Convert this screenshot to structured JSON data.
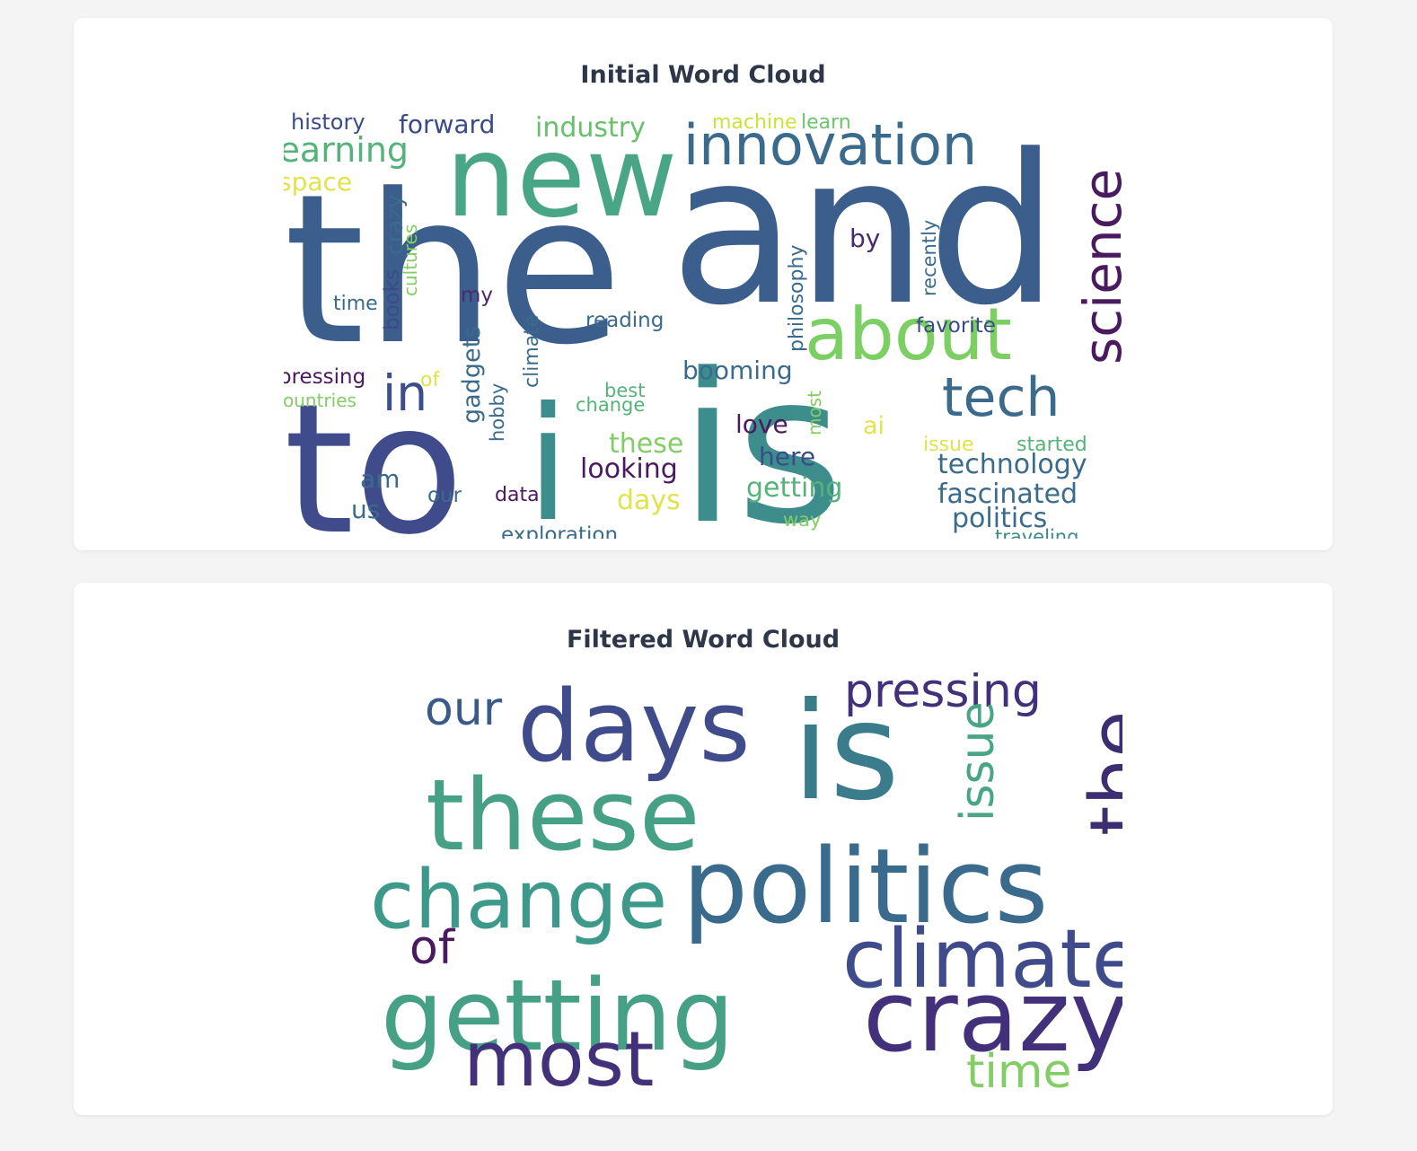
{
  "charts": {
    "initial": {
      "title": "Initial Word Cloud",
      "chart_data": {
        "type": "wordcloud",
        "words": [
          {
            "text": "the",
            "color": "#3b5e8c"
          },
          {
            "text": "and",
            "color": "#3b5e8c"
          },
          {
            "text": "new",
            "color": "#48a687"
          },
          {
            "text": "to",
            "color": "#3f4b8a"
          },
          {
            "text": "is",
            "color": "#3d8d8c"
          },
          {
            "text": "i",
            "color": "#3d8d8c"
          },
          {
            "text": "innovation",
            "color": "#3a6b8c"
          },
          {
            "text": "about",
            "color": "#7ccf62"
          },
          {
            "text": "science",
            "color": "#4a1a5e"
          },
          {
            "text": "tech",
            "color": "#3a6b8c"
          },
          {
            "text": "in",
            "color": "#3d4f8a"
          },
          {
            "text": "learning",
            "color": "#55b37a"
          },
          {
            "text": "forward",
            "color": "#3a4b8a"
          },
          {
            "text": "history",
            "color": "#3b4b8a"
          },
          {
            "text": "industry",
            "color": "#67c06a"
          },
          {
            "text": "machine",
            "color": "#cde23a"
          },
          {
            "text": "learn",
            "color": "#6dc46a"
          },
          {
            "text": "space",
            "color": "#e0e34a"
          },
          {
            "text": "books",
            "color": "#3a4b8a"
          },
          {
            "text": "crazy",
            "color": "#3a6b8c"
          },
          {
            "text": "cultures",
            "color": "#82cd64"
          },
          {
            "text": "time",
            "color": "#3a6b8c"
          },
          {
            "text": "my",
            "color": "#4a2a6e"
          },
          {
            "text": "gadgets",
            "color": "#3a6b8c"
          },
          {
            "text": "climate",
            "color": "#3a6b8c"
          },
          {
            "text": "reading",
            "color": "#3a6b8c"
          },
          {
            "text": "by",
            "color": "#4a2a6e"
          },
          {
            "text": "philosophy",
            "color": "#3a6b8c"
          },
          {
            "text": "recently",
            "color": "#3a6b8c"
          },
          {
            "text": "favorite",
            "color": "#3a4b8a"
          },
          {
            "text": "booming",
            "color": "#3a6b8c"
          },
          {
            "text": "pressing",
            "color": "#4a1a5e"
          },
          {
            "text": "of",
            "color": "#e0e34a"
          },
          {
            "text": "countries",
            "color": "#82cd64"
          },
          {
            "text": "best",
            "color": "#55b37a"
          },
          {
            "text": "change",
            "color": "#55b37a"
          },
          {
            "text": "hobby",
            "color": "#3a6b8c"
          },
          {
            "text": "love",
            "color": "#4a1a5e"
          },
          {
            "text": "most",
            "color": "#82cd64"
          },
          {
            "text": "ai",
            "color": "#e0e34a"
          },
          {
            "text": "issue",
            "color": "#e0e34a"
          },
          {
            "text": "started",
            "color": "#55b37a"
          },
          {
            "text": "these",
            "color": "#82cd64"
          },
          {
            "text": "here",
            "color": "#3a4b8a"
          },
          {
            "text": "technology",
            "color": "#3a6b8c"
          },
          {
            "text": "looking",
            "color": "#4a1a5e"
          },
          {
            "text": "am",
            "color": "#3a6b8c"
          },
          {
            "text": "getting",
            "color": "#55b37a"
          },
          {
            "text": "fascinated",
            "color": "#3a6b8c"
          },
          {
            "text": "our",
            "color": "#3a6b8c"
          },
          {
            "text": "data",
            "color": "#4a1a5e"
          },
          {
            "text": "days",
            "color": "#e0e34a"
          },
          {
            "text": "us",
            "color": "#3a6b8c"
          },
          {
            "text": "politics",
            "color": "#3a6b8c"
          },
          {
            "text": "way",
            "color": "#82cd64"
          },
          {
            "text": "exploration",
            "color": "#3a6b8c"
          },
          {
            "text": "traveling",
            "color": "#3a8b8c"
          }
        ]
      }
    },
    "filtered": {
      "title": "Filtered Word Cloud",
      "chart_data": {
        "type": "wordcloud",
        "words": [
          {
            "text": "days",
            "color": "#3f4b8a"
          },
          {
            "text": "is",
            "color": "#3a7b8c"
          },
          {
            "text": "pressing",
            "color": "#43307a"
          },
          {
            "text": "our",
            "color": "#3a5b8a"
          },
          {
            "text": "these",
            "color": "#45a085"
          },
          {
            "text": "the",
            "color": "#3d2e72"
          },
          {
            "text": "issue",
            "color": "#48a687"
          },
          {
            "text": "change",
            "color": "#3d9a8a"
          },
          {
            "text": "politics",
            "color": "#3a6b8c"
          },
          {
            "text": "of",
            "color": "#4a1a5e"
          },
          {
            "text": "climate",
            "color": "#3f4b8a"
          },
          {
            "text": "getting",
            "color": "#45a085"
          },
          {
            "text": "crazy",
            "color": "#43307a"
          },
          {
            "text": "most",
            "color": "#43307a"
          },
          {
            "text": "time",
            "color": "#82cd64"
          }
        ]
      }
    }
  }
}
